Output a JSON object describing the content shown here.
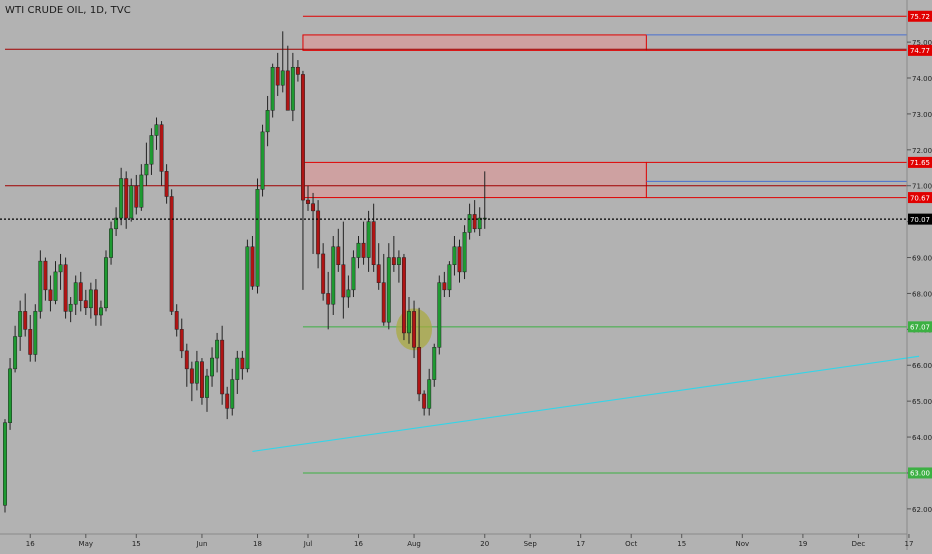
{
  "chart_data": {
    "type": "candlestick",
    "title": "WTI CRUDE OIL, 1D, TVC",
    "ylim": [
      61.3,
      75.95
    ],
    "y_ticks": [
      "62.00",
      "63.00",
      "64.00",
      "65.00",
      "66.00",
      "67.00",
      "68.00",
      "69.00",
      "70.00",
      "71.00",
      "72.00",
      "73.00",
      "74.00",
      "75.00"
    ],
    "x_ticks": [
      "16",
      "May",
      "15",
      "Jun",
      "18",
      "Jul",
      "16",
      "Aug",
      "20",
      "Sep",
      "17",
      "Oct",
      "15",
      "Nov",
      "19",
      "Dec",
      "17"
    ],
    "price_tags": [
      {
        "label": "75.72",
        "value": 75.72,
        "color": "#e00000"
      },
      {
        "label": "74.77",
        "value": 74.77,
        "color": "#e00000"
      },
      {
        "label": "71.65",
        "value": 71.65,
        "color": "#e00000"
      },
      {
        "label": "70.67",
        "value": 70.67,
        "color": "#e00000"
      },
      {
        "label": "70.07",
        "value": 70.07,
        "color": "#000000"
      },
      {
        "label": "67.07",
        "value": 67.07,
        "color": "#3cb043"
      },
      {
        "label": "63.00",
        "value": 63.0,
        "color": "#3cb043"
      }
    ],
    "candles": [
      [
        62.1,
        64.5,
        61.9,
        64.4
      ],
      [
        64.4,
        66.2,
        64.2,
        65.9
      ],
      [
        65.9,
        67.1,
        65.8,
        66.8
      ],
      [
        66.8,
        67.8,
        66.4,
        67.5
      ],
      [
        67.5,
        68.0,
        66.8,
        67.0
      ],
      [
        67.0,
        67.4,
        66.1,
        66.3
      ],
      [
        66.3,
        67.7,
        66.1,
        67.5
      ],
      [
        67.5,
        69.2,
        67.3,
        68.9
      ],
      [
        68.9,
        69.0,
        67.8,
        68.1
      ],
      [
        68.1,
        68.5,
        67.5,
        67.8
      ],
      [
        67.8,
        68.9,
        67.7,
        68.6
      ],
      [
        68.6,
        69.1,
        68.1,
        68.8
      ],
      [
        68.8,
        69.0,
        67.3,
        67.5
      ],
      [
        67.5,
        67.9,
        67.2,
        67.7
      ],
      [
        67.7,
        68.5,
        67.4,
        68.3
      ],
      [
        68.3,
        68.6,
        67.5,
        67.8
      ],
      [
        67.8,
        68.1,
        67.4,
        67.6
      ],
      [
        67.6,
        68.3,
        67.3,
        68.1
      ],
      [
        68.1,
        68.4,
        67.1,
        67.4
      ],
      [
        67.4,
        67.8,
        67.1,
        67.6
      ],
      [
        67.6,
        69.2,
        67.5,
        69.0
      ],
      [
        69.0,
        70.0,
        68.8,
        69.8
      ],
      [
        69.8,
        70.4,
        69.6,
        70.1
      ],
      [
        70.1,
        71.5,
        69.9,
        71.2
      ],
      [
        71.2,
        71.4,
        69.8,
        70.1
      ],
      [
        70.1,
        71.2,
        70.0,
        71.0
      ],
      [
        71.0,
        71.3,
        70.2,
        70.4
      ],
      [
        70.4,
        71.6,
        70.3,
        71.3
      ],
      [
        71.3,
        72.2,
        71.0,
        71.6
      ],
      [
        71.6,
        72.6,
        71.3,
        72.4
      ],
      [
        72.4,
        72.9,
        72.0,
        72.7
      ],
      [
        72.7,
        72.8,
        71.0,
        71.4
      ],
      [
        71.4,
        71.6,
        70.5,
        70.7
      ],
      [
        70.7,
        70.9,
        67.4,
        67.5
      ],
      [
        67.5,
        67.7,
        66.8,
        67.0
      ],
      [
        67.0,
        67.3,
        66.2,
        66.4
      ],
      [
        66.4,
        66.6,
        65.4,
        65.9
      ],
      [
        65.9,
        66.1,
        65.0,
        65.5
      ],
      [
        65.5,
        66.4,
        65.3,
        66.1
      ],
      [
        66.1,
        66.2,
        64.9,
        65.1
      ],
      [
        65.1,
        65.9,
        64.7,
        65.7
      ],
      [
        65.7,
        66.5,
        65.4,
        66.2
      ],
      [
        66.2,
        66.9,
        65.8,
        66.7
      ],
      [
        66.7,
        67.1,
        64.9,
        65.2
      ],
      [
        65.2,
        65.4,
        64.5,
        64.8
      ],
      [
        64.8,
        65.9,
        64.6,
        65.6
      ],
      [
        65.6,
        66.4,
        65.2,
        66.2
      ],
      [
        66.2,
        66.4,
        65.6,
        65.9
      ],
      [
        65.9,
        69.5,
        65.8,
        69.3
      ],
      [
        69.3,
        69.6,
        68.1,
        68.2
      ],
      [
        68.2,
        71.2,
        68.0,
        70.9
      ],
      [
        70.9,
        72.7,
        70.7,
        72.5
      ],
      [
        72.5,
        73.5,
        72.1,
        73.1
      ],
      [
        73.1,
        74.4,
        72.9,
        74.3
      ],
      [
        74.3,
        74.7,
        73.5,
        73.8
      ],
      [
        73.8,
        75.3,
        73.6,
        74.2
      ],
      [
        74.2,
        74.9,
        73.1,
        73.1
      ],
      [
        73.1,
        74.7,
        72.8,
        74.3
      ],
      [
        74.3,
        74.5,
        73.9,
        74.1
      ],
      [
        74.1,
        74.2,
        68.1,
        70.6
      ],
      [
        70.6,
        71.0,
        70.3,
        70.5
      ],
      [
        70.5,
        70.8,
        69.1,
        70.3
      ],
      [
        70.3,
        70.6,
        68.7,
        69.1
      ],
      [
        69.1,
        69.4,
        67.8,
        68.0
      ],
      [
        68.0,
        68.6,
        67.0,
        67.7
      ],
      [
        67.7,
        69.6,
        67.4,
        69.3
      ],
      [
        69.3,
        69.8,
        68.6,
        68.8
      ],
      [
        68.8,
        70.0,
        67.3,
        67.9
      ],
      [
        67.9,
        68.5,
        67.6,
        68.1
      ],
      [
        68.1,
        69.2,
        67.9,
        69.0
      ],
      [
        69.0,
        69.6,
        68.7,
        69.4
      ],
      [
        69.4,
        70.0,
        68.8,
        69.0
      ],
      [
        69.0,
        70.3,
        68.6,
        70.0
      ],
      [
        70.0,
        70.5,
        68.6,
        68.8
      ],
      [
        68.8,
        69.4,
        68.1,
        68.3
      ],
      [
        68.3,
        69.1,
        67.1,
        67.2
      ],
      [
        67.2,
        69.4,
        67.0,
        69.0
      ],
      [
        69.0,
        69.6,
        68.6,
        68.8
      ],
      [
        68.8,
        69.2,
        68.3,
        69.0
      ],
      [
        69.0,
        69.1,
        66.7,
        66.9
      ],
      [
        66.9,
        67.9,
        66.6,
        67.5
      ],
      [
        67.5,
        67.8,
        66.2,
        66.5
      ],
      [
        66.5,
        67.6,
        65.0,
        65.2
      ],
      [
        65.2,
        65.3,
        64.6,
        64.8
      ],
      [
        64.8,
        65.9,
        64.6,
        65.6
      ],
      [
        65.6,
        66.6,
        65.4,
        66.5
      ],
      [
        66.5,
        68.5,
        66.3,
        68.3
      ],
      [
        68.3,
        68.6,
        67.9,
        68.1
      ],
      [
        68.1,
        68.9,
        67.9,
        68.8
      ],
      [
        68.8,
        69.6,
        68.5,
        69.3
      ],
      [
        69.3,
        69.5,
        68.3,
        68.6
      ],
      [
        68.6,
        69.9,
        68.4,
        69.7
      ],
      [
        69.7,
        70.5,
        69.5,
        70.2
      ],
      [
        70.2,
        70.6,
        69.7,
        69.8
      ],
      [
        69.8,
        70.4,
        69.6,
        70.1
      ],
      [
        70.1,
        71.4,
        69.8,
        70.1
      ]
    ],
    "zones": [
      {
        "label": "supply-zone-upper",
        "from_index": 59,
        "to_index": 127,
        "low": 74.77,
        "high": 75.2
      },
      {
        "label": "supply-zone-lower",
        "from_index": 59,
        "to_index": 127,
        "low": 70.67,
        "high": 71.65
      }
    ],
    "horizontal_lines": [
      {
        "name": "line-75.72",
        "value": 75.72,
        "from_index": 59,
        "color": "#e00000"
      },
      {
        "name": "line-74.8-long",
        "value": 74.8,
        "from_index": 0,
        "color": "#a00000"
      },
      {
        "name": "line-74.77",
        "value": 74.77,
        "from_index": 127,
        "color": "#e00000"
      },
      {
        "name": "line-75.2-blue",
        "value": 75.2,
        "from_index": 127,
        "color": "#4a6fd0"
      },
      {
        "name": "line-71.65",
        "value": 71.65,
        "from_index": 127,
        "color": "#e00000"
      },
      {
        "name": "line-71.0-long",
        "value": 71.0,
        "from_index": 0,
        "color": "#a00000"
      },
      {
        "name": "line-71.1-blue",
        "value": 71.12,
        "from_index": 127,
        "color": "#4a6fd0"
      },
      {
        "name": "line-70.67",
        "value": 70.67,
        "from_index": 127,
        "color": "#e00000"
      },
      {
        "name": "line-67.07",
        "value": 67.07,
        "from_index": 59,
        "color": "#3cb043"
      },
      {
        "name": "line-63.00",
        "value": 63.0,
        "from_index": 59,
        "color": "#3cb043"
      }
    ],
    "current_price": 70.07,
    "trendline": {
      "from": [
        49,
        63.6
      ],
      "to": [
        181,
        66.25
      ],
      "color": "#33d5e8"
    },
    "highlight": {
      "index": 81,
      "value": 67.0,
      "color": "#a9a93a"
    }
  }
}
